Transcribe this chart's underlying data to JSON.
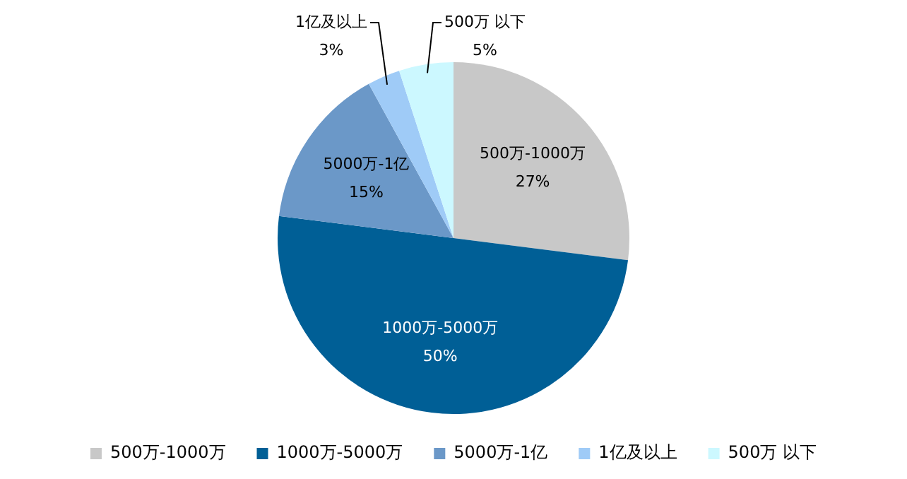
{
  "chart_data": {
    "type": "pie",
    "categories": [
      "500万-1000万",
      "1000万-5000万",
      "5000万-1亿",
      "1亿及以上",
      "500万 以下"
    ],
    "values": [
      27,
      50,
      15,
      3,
      5
    ],
    "value_labels": [
      "27%",
      "50%",
      "15%",
      "3%",
      "5%"
    ],
    "colors": [
      "#c8c8c8",
      "#005f96",
      "#6b98c8",
      "#9fcbf7",
      "#ccf8ff"
    ],
    "legend": "bottom"
  }
}
